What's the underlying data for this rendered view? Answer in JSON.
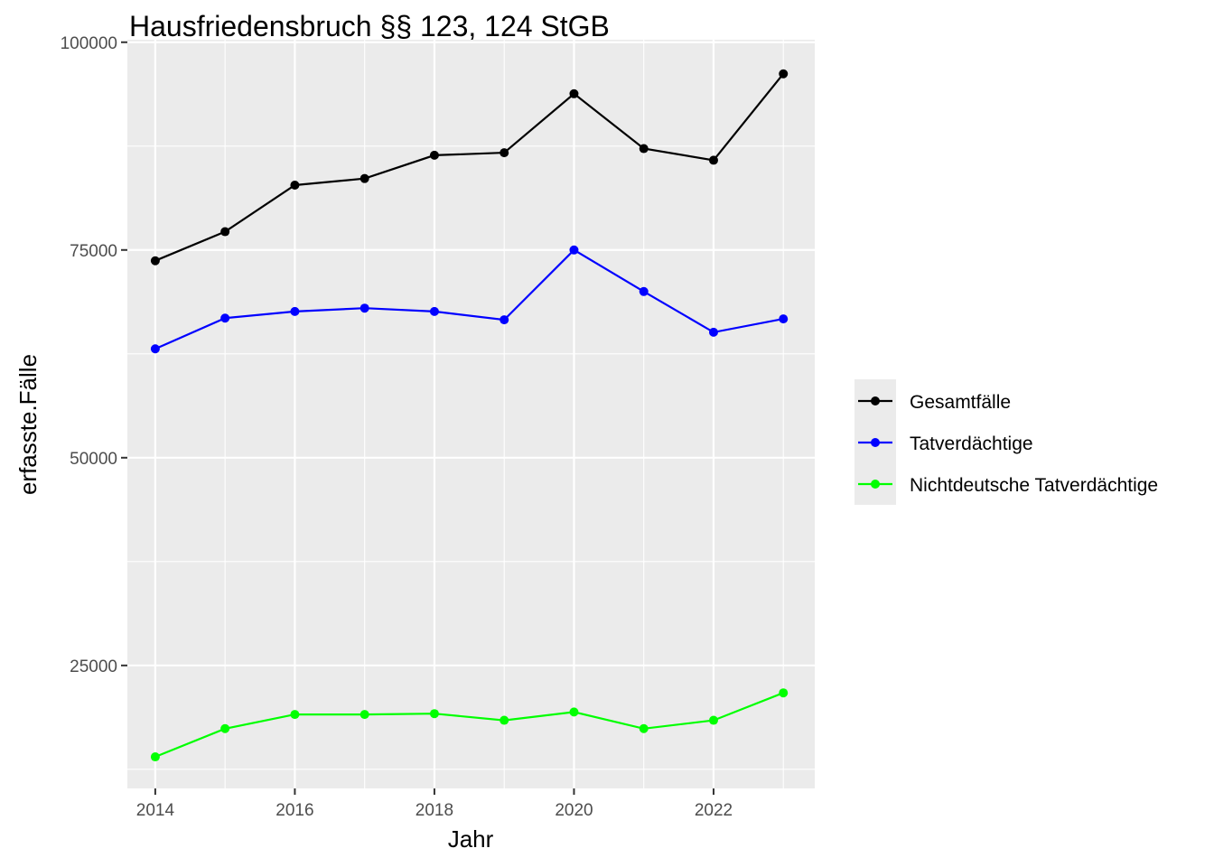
{
  "chart_data": {
    "type": "line",
    "title": "Hausfriedensbruch §§ 123, 124 StGB",
    "xlabel": "Jahr",
    "ylabel": "erfasste.Fälle",
    "x": [
      2014,
      2015,
      2016,
      2017,
      2018,
      2019,
      2020,
      2021,
      2022,
      2023
    ],
    "xlim": [
      2013.6,
      2023.45
    ],
    "ylim": [
      10200,
      100300
    ],
    "x_ticks": [
      2014,
      2016,
      2018,
      2020,
      2022
    ],
    "y_ticks": [
      25000,
      50000,
      75000,
      100000
    ],
    "x_tick_labels": [
      "2014",
      "2016",
      "2018",
      "2020",
      "2022"
    ],
    "y_tick_labels": [
      "25000",
      "50000",
      "75000",
      "100000"
    ],
    "grid": true,
    "legend_position": "right",
    "series": [
      {
        "name": "Gesamtfälle",
        "color": "#000000",
        "values": [
          73700,
          77200,
          82800,
          83600,
          86400,
          86700,
          93800,
          87200,
          85800,
          96200
        ]
      },
      {
        "name": "Tatverdächtige",
        "color": "#0000ff",
        "values": [
          63100,
          66800,
          67600,
          68000,
          67600,
          66600,
          75000,
          70000,
          65100,
          66700
        ]
      },
      {
        "name": "Nichtdeutsche Tatverdächtige",
        "color": "#00ff00",
        "values": [
          14000,
          17400,
          19100,
          19100,
          19200,
          18400,
          19400,
          17400,
          18400,
          21700
        ]
      }
    ]
  }
}
